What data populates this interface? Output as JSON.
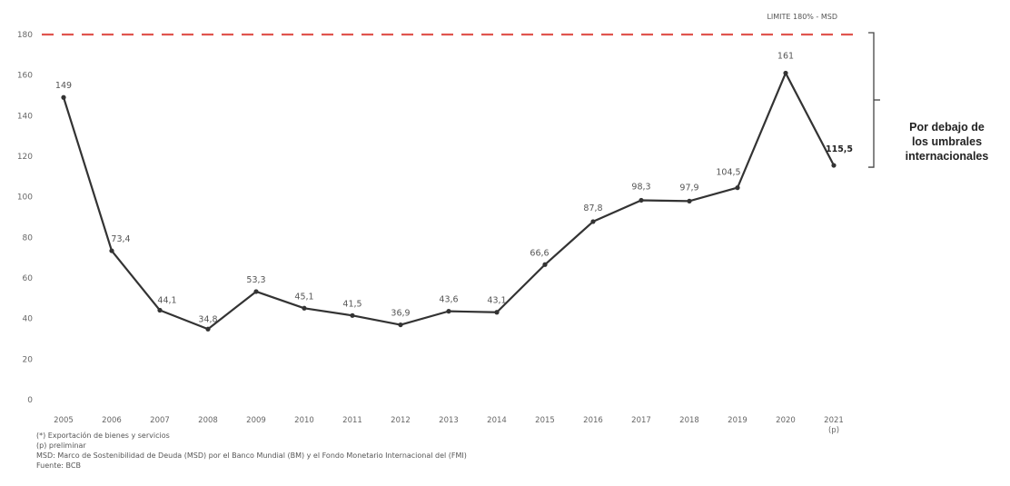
{
  "chart_data": {
    "type": "line",
    "categories": [
      "2005",
      "2006",
      "2007",
      "2008",
      "2009",
      "2010",
      "2011",
      "2012",
      "2013",
      "2014",
      "2015",
      "2016",
      "2017",
      "2018",
      "2019",
      "2020",
      "2021"
    ],
    "category_sublabels": {
      "2021": "(p)"
    },
    "values": [
      149,
      73.4,
      44.1,
      34.8,
      53.3,
      45.1,
      41.5,
      36.9,
      43.6,
      43.1,
      66.6,
      87.8,
      98.3,
      97.9,
      104.5,
      161,
      115.5
    ],
    "value_labels": [
      "149",
      "73,4",
      "44,1",
      "34,8",
      "53,3",
      "45,1",
      "41,5",
      "36,9",
      "43,6",
      "43,1",
      "66,6",
      "87,8",
      "98,3",
      "97,9",
      "104,5",
      "161",
      "115,5"
    ],
    "y_ticks": [
      0,
      20,
      40,
      60,
      80,
      100,
      120,
      140,
      160,
      180
    ],
    "ylim": [
      0,
      180
    ],
    "line_color": "#333333",
    "reference_line": {
      "value": 180,
      "label": "LIMITE 180% - MSD",
      "color": "#e0554f",
      "style": "dashed"
    },
    "bracket_annotation": [
      "Por debajo de",
      "los umbrales",
      "internacionales"
    ],
    "grid": false,
    "legend": "none"
  },
  "notes": [
    "(*) Exportación de bienes y servicios",
    "(p) preliminar",
    "MSD: Marco de Sostenibilidad de Deuda (MSD) por el Banco Mundial (BM) y el Fondo Monetario Internacional del (FMI)",
    "Fuente: BCB"
  ]
}
